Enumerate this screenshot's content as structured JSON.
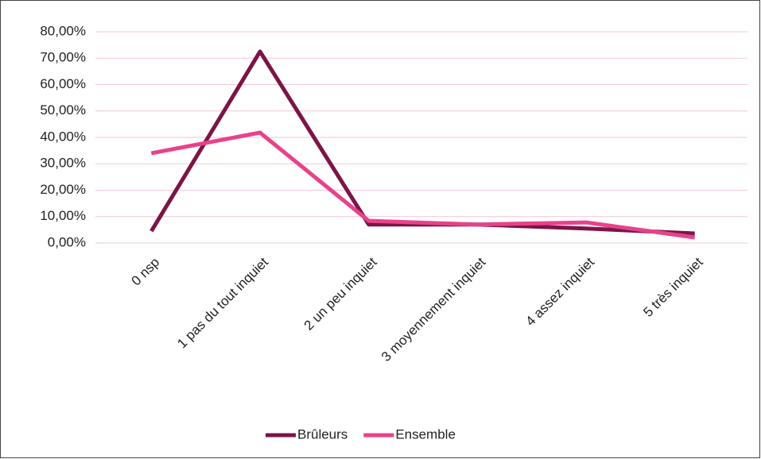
{
  "chart_data": {
    "type": "line",
    "categories": [
      "0 nsp",
      "1 pas du tout inquiet",
      "2 un peu inquiet",
      "3 moyennement inquiet",
      "4 assez inquiet",
      "5 très inquiet"
    ],
    "series": [
      {
        "name": "Brûleurs",
        "color": "#7b1547",
        "values": [
          4.5,
          72.5,
          7.0,
          7.0,
          5.5,
          3.6
        ]
      },
      {
        "name": "Ensemble",
        "color": "#e8428a",
        "values": [
          34.0,
          41.8,
          8.4,
          7.0,
          7.8,
          2.1
        ]
      }
    ],
    "ylim": [
      0,
      80
    ],
    "yticks": [
      {
        "value": 0,
        "label": "0,00%"
      },
      {
        "value": 10,
        "label": "10,00%"
      },
      {
        "value": 20,
        "label": "20,00%"
      },
      {
        "value": 30,
        "label": "30,00%"
      },
      {
        "value": 40,
        "label": "40,00%"
      },
      {
        "value": 50,
        "label": "50,00%"
      },
      {
        "value": 60,
        "label": "60,00%"
      },
      {
        "value": 70,
        "label": "70,00%"
      },
      {
        "value": 80,
        "label": "80,00%"
      }
    ],
    "grid": true,
    "legend": "bottom"
  }
}
